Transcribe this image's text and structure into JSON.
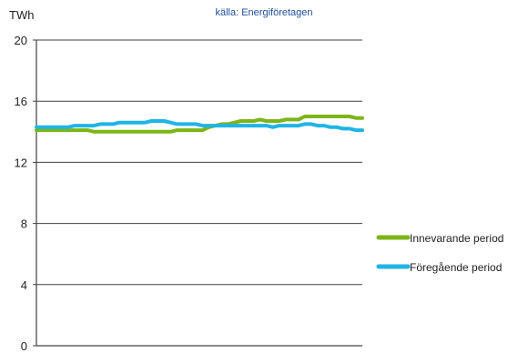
{
  "source_note": "källa: Energiföretagen",
  "chart_data": {
    "type": "line",
    "ylabel": "TWh",
    "ylim": [
      0,
      20
    ],
    "yticks": [
      "0",
      "4",
      "8",
      "12",
      "16",
      "20"
    ],
    "grid": true,
    "legend_position": "right",
    "x": [
      1,
      2,
      3,
      4,
      5,
      6,
      7,
      8,
      9,
      10,
      11,
      12,
      13,
      14,
      15,
      16,
      17,
      18,
      19,
      20,
      21,
      22,
      23,
      24,
      25,
      26,
      27,
      28,
      29,
      30,
      31,
      32,
      33,
      34,
      35,
      36,
      37,
      38,
      39,
      40,
      41,
      42,
      43,
      44,
      45,
      46,
      47,
      48,
      49,
      50,
      51,
      52
    ],
    "series": [
      {
        "name": "Innevarande period",
        "color": "#7cb518",
        "values": [
          14.1,
          14.1,
          14.1,
          14.1,
          14.1,
          14.1,
          14.1,
          14.1,
          14.1,
          14.0,
          14.0,
          14.0,
          14.0,
          14.0,
          14.0,
          14.0,
          14.0,
          14.0,
          14.0,
          14.0,
          14.0,
          14.0,
          14.1,
          14.1,
          14.1,
          14.1,
          14.1,
          14.3,
          14.4,
          14.5,
          14.5,
          14.6,
          14.7,
          14.7,
          14.7,
          14.8,
          14.7,
          14.7,
          14.7,
          14.8,
          14.8,
          14.8,
          15.0,
          15.0,
          15.0,
          15.0,
          15.0,
          15.0,
          15.0,
          15.0,
          14.9,
          14.9
        ]
      },
      {
        "name": "Föregående period",
        "color": "#1fb4e6",
        "values": [
          14.3,
          14.3,
          14.3,
          14.3,
          14.3,
          14.3,
          14.4,
          14.4,
          14.4,
          14.4,
          14.5,
          14.5,
          14.5,
          14.6,
          14.6,
          14.6,
          14.6,
          14.6,
          14.7,
          14.7,
          14.7,
          14.6,
          14.5,
          14.5,
          14.5,
          14.5,
          14.4,
          14.4,
          14.4,
          14.4,
          14.4,
          14.4,
          14.4,
          14.4,
          14.4,
          14.4,
          14.4,
          14.3,
          14.4,
          14.4,
          14.4,
          14.4,
          14.5,
          14.5,
          14.4,
          14.4,
          14.3,
          14.3,
          14.2,
          14.2,
          14.1,
          14.1
        ]
      }
    ]
  }
}
